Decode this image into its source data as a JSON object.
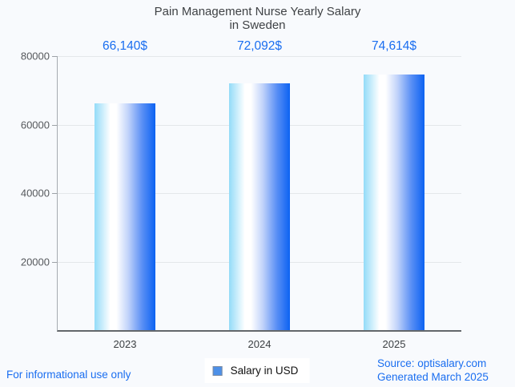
{
  "page": {
    "background_color": "#f8fafd",
    "accent_blue": "#1a6ef0"
  },
  "chart_data": {
    "type": "bar",
    "title": "Pain Management Nurse Yearly Salary\nin Sweden",
    "categories": [
      "2023",
      "2024",
      "2025"
    ],
    "values": [
      66140,
      72092,
      74614
    ],
    "value_labels": [
      "66,140$",
      "72,092$",
      "74,614$"
    ],
    "series": [
      {
        "name": "Salary in USD",
        "values": [
          66140,
          72092,
          74614
        ]
      }
    ],
    "xlabel": "",
    "ylabel": "",
    "ylim": [
      0,
      80000
    ],
    "y_ticks": [
      20000,
      40000,
      60000,
      80000
    ],
    "y_tick_labels": [
      "20000",
      "40000",
      "60000",
      "80000"
    ],
    "grid": true,
    "legend_position": "bottom",
    "bar_gradient_colors": [
      "#93dbf8",
      "#ffffff",
      "#c3d4fa",
      "#5b90f5",
      "#0c62f2"
    ],
    "title_color": "#3f4245",
    "value_label_color": "#1a6ef0"
  },
  "legend": {
    "label": "Salary in USD",
    "swatch_fill": "#4d90e8",
    "swatch_border": "#7b8aa0"
  },
  "footer": {
    "disclaimer": "For informational use only",
    "source_line1": "Source: optisalary.com",
    "source_line2": "Generated March 2025"
  }
}
